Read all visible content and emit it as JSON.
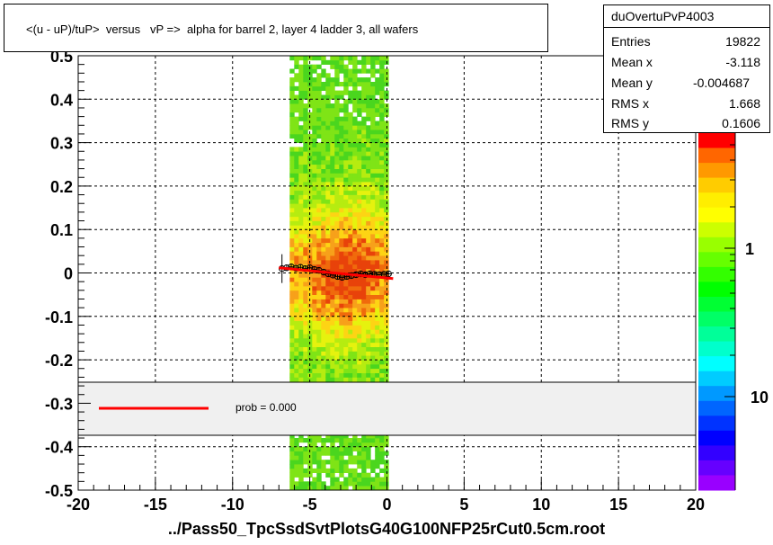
{
  "title": "<(u - uP)/tuP>  versus   vP =>  alpha for barrel 2, layer 4 ladder 3, all wafers",
  "xaxis_title": "../Pass50_TpcSsdSvtPlotsG40G100NFP25rCut0.5cm.root",
  "stats": {
    "name": "duOvertuPvP4003",
    "rows": [
      {
        "label": "Entries",
        "value": "19822"
      },
      {
        "label": "Mean x",
        "value": "-3.118"
      },
      {
        "label": "Mean y",
        "value": "-0.004687"
      },
      {
        "label": "RMS x",
        "value": "1.668"
      },
      {
        "label": "RMS y",
        "value": "0.1606"
      }
    ]
  },
  "legend": {
    "prob_text": "prob = 0.000",
    "line_color": "#ff0000"
  },
  "colorbar": {
    "tick_labels": [
      "1",
      "10"
    ],
    "partial_label": "0"
  },
  "chart_data": {
    "type": "heatmap",
    "xlim": [
      -20,
      20
    ],
    "ylim": [
      -0.5,
      0.5
    ],
    "xticks": [
      "-20",
      "-15",
      "-10",
      "-5",
      "0",
      "5",
      "10",
      "15",
      "20"
    ],
    "yticks": [
      "-0.5",
      "-0.4",
      "-0.3",
      "-0.2",
      "-0.1",
      "0",
      "0.1",
      "0.2",
      "0.3",
      "0.4",
      "0.5"
    ],
    "grid": true,
    "occupied_x_range": [
      -6.3,
      0.1
    ],
    "profile_points": [
      {
        "x": -6.8,
        "y": 0.01
      },
      {
        "x": -6.5,
        "y": 0.012
      },
      {
        "x": -6.2,
        "y": 0.014
      },
      {
        "x": -5.9,
        "y": 0.011
      },
      {
        "x": -5.6,
        "y": 0.013
      },
      {
        "x": -5.3,
        "y": 0.01
      },
      {
        "x": -5.0,
        "y": 0.012
      },
      {
        "x": -4.7,
        "y": 0.008
      },
      {
        "x": -4.4,
        "y": 0.006
      },
      {
        "x": -4.1,
        "y": 0.002
      },
      {
        "x": -3.8,
        "y": -0.002
      },
      {
        "x": -3.5,
        "y": -0.005
      },
      {
        "x": -3.2,
        "y": -0.008
      },
      {
        "x": -2.9,
        "y": -0.01
      },
      {
        "x": -2.6,
        "y": -0.008
      },
      {
        "x": -2.3,
        "y": -0.006
      },
      {
        "x": -2.0,
        "y": -0.004
      },
      {
        "x": -1.7,
        "y": -0.002
      },
      {
        "x": -1.4,
        "y": -0.004
      },
      {
        "x": -1.1,
        "y": -0.002
      },
      {
        "x": -0.8,
        "y": -0.003
      },
      {
        "x": -0.5,
        "y": -0.004
      },
      {
        "x": -0.2,
        "y": -0.003
      },
      {
        "x": 0.1,
        "y": -0.002
      }
    ],
    "fit_line": {
      "x": [
        -7.0,
        0.4
      ],
      "y": [
        0.012,
        -0.013
      ],
      "color": "#ff0000"
    }
  }
}
